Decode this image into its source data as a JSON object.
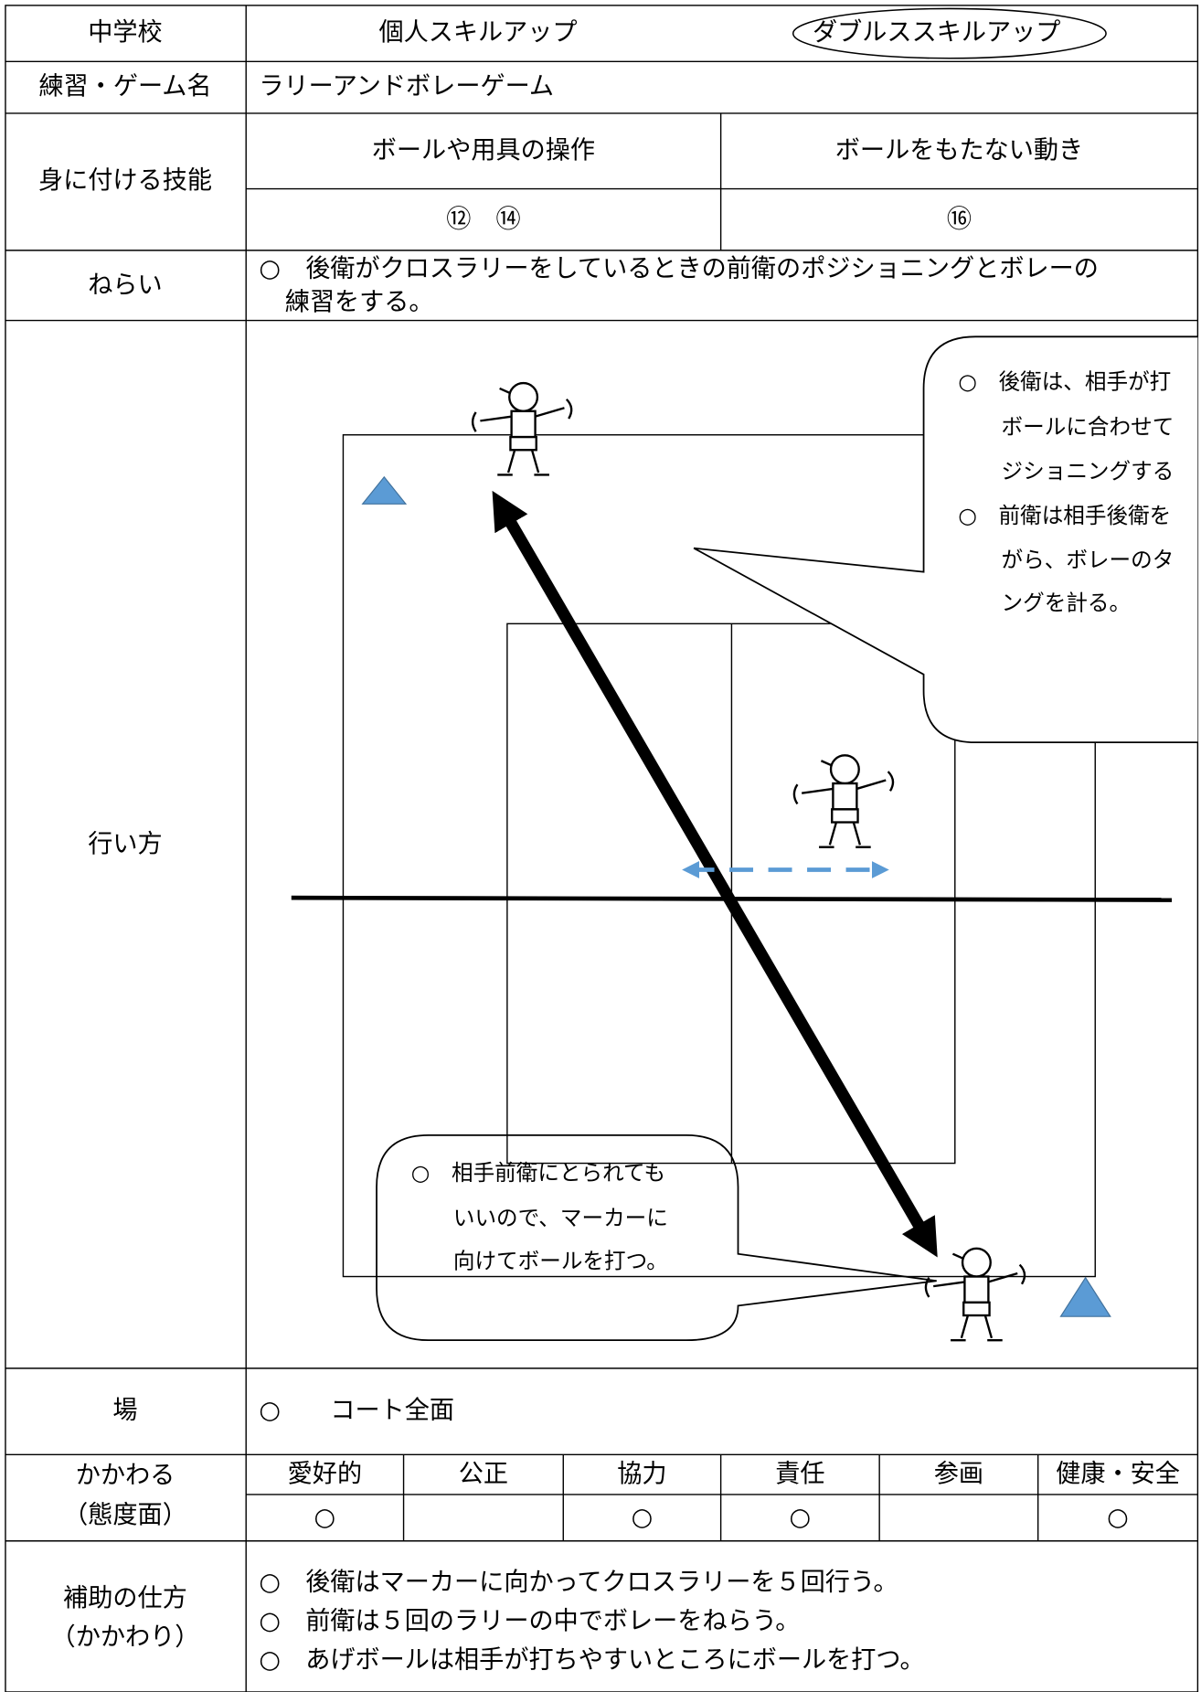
{
  "header": {
    "school": "中学校",
    "options": [
      "個人スキルアップ",
      "ダブルススキルアップ"
    ]
  },
  "name": {
    "label": "練習・ゲーム名",
    "value": "ラリーアンドボレーゲーム"
  },
  "skills": {
    "label": "身に付ける技能",
    "columns": [
      "ボールや用具の操作",
      "ボールをもたない動き"
    ],
    "items": [
      "⑫　⑭",
      "⑯"
    ]
  },
  "aim": {
    "label": "ねらい",
    "lines": [
      "○　後衛がクロスラリーをしているときの前衛のポジショニングとボレーの",
      "練習をする。"
    ]
  },
  "method": {
    "label": "行い方",
    "callout_top": [
      "○　後衛は、相手が打",
      "ボールに合わせて",
      "ジショニングする",
      "○　前衛は相手後衛を",
      "がら、ボレーのタ",
      "ングを計る。"
    ],
    "callout_bottom": [
      "○　相手前衛にとられても",
      "いいので、マーカーに",
      "向けてボールを打つ。"
    ]
  },
  "place": {
    "label": "場",
    "value": "○　　コート全面"
  },
  "attitude": {
    "label": [
      "かかわる",
      "（態度面）"
    ],
    "headers": [
      "愛好的",
      "公正",
      "協力",
      "責任",
      "参画",
      "健康・安全"
    ],
    "marks": [
      "○",
      null,
      "○",
      "○",
      null,
      "○"
    ]
  },
  "support": {
    "label": [
      "補助の仕方",
      "（かかわり）"
    ],
    "lines": [
      "○　後衛はマーカーに向かってクロスラリーを５回行う。",
      "○　前衛は５回のラリーの中でボレーをねらう。",
      "○　あげボールは相手が打ちやすいところにボールを打つ。"
    ]
  }
}
